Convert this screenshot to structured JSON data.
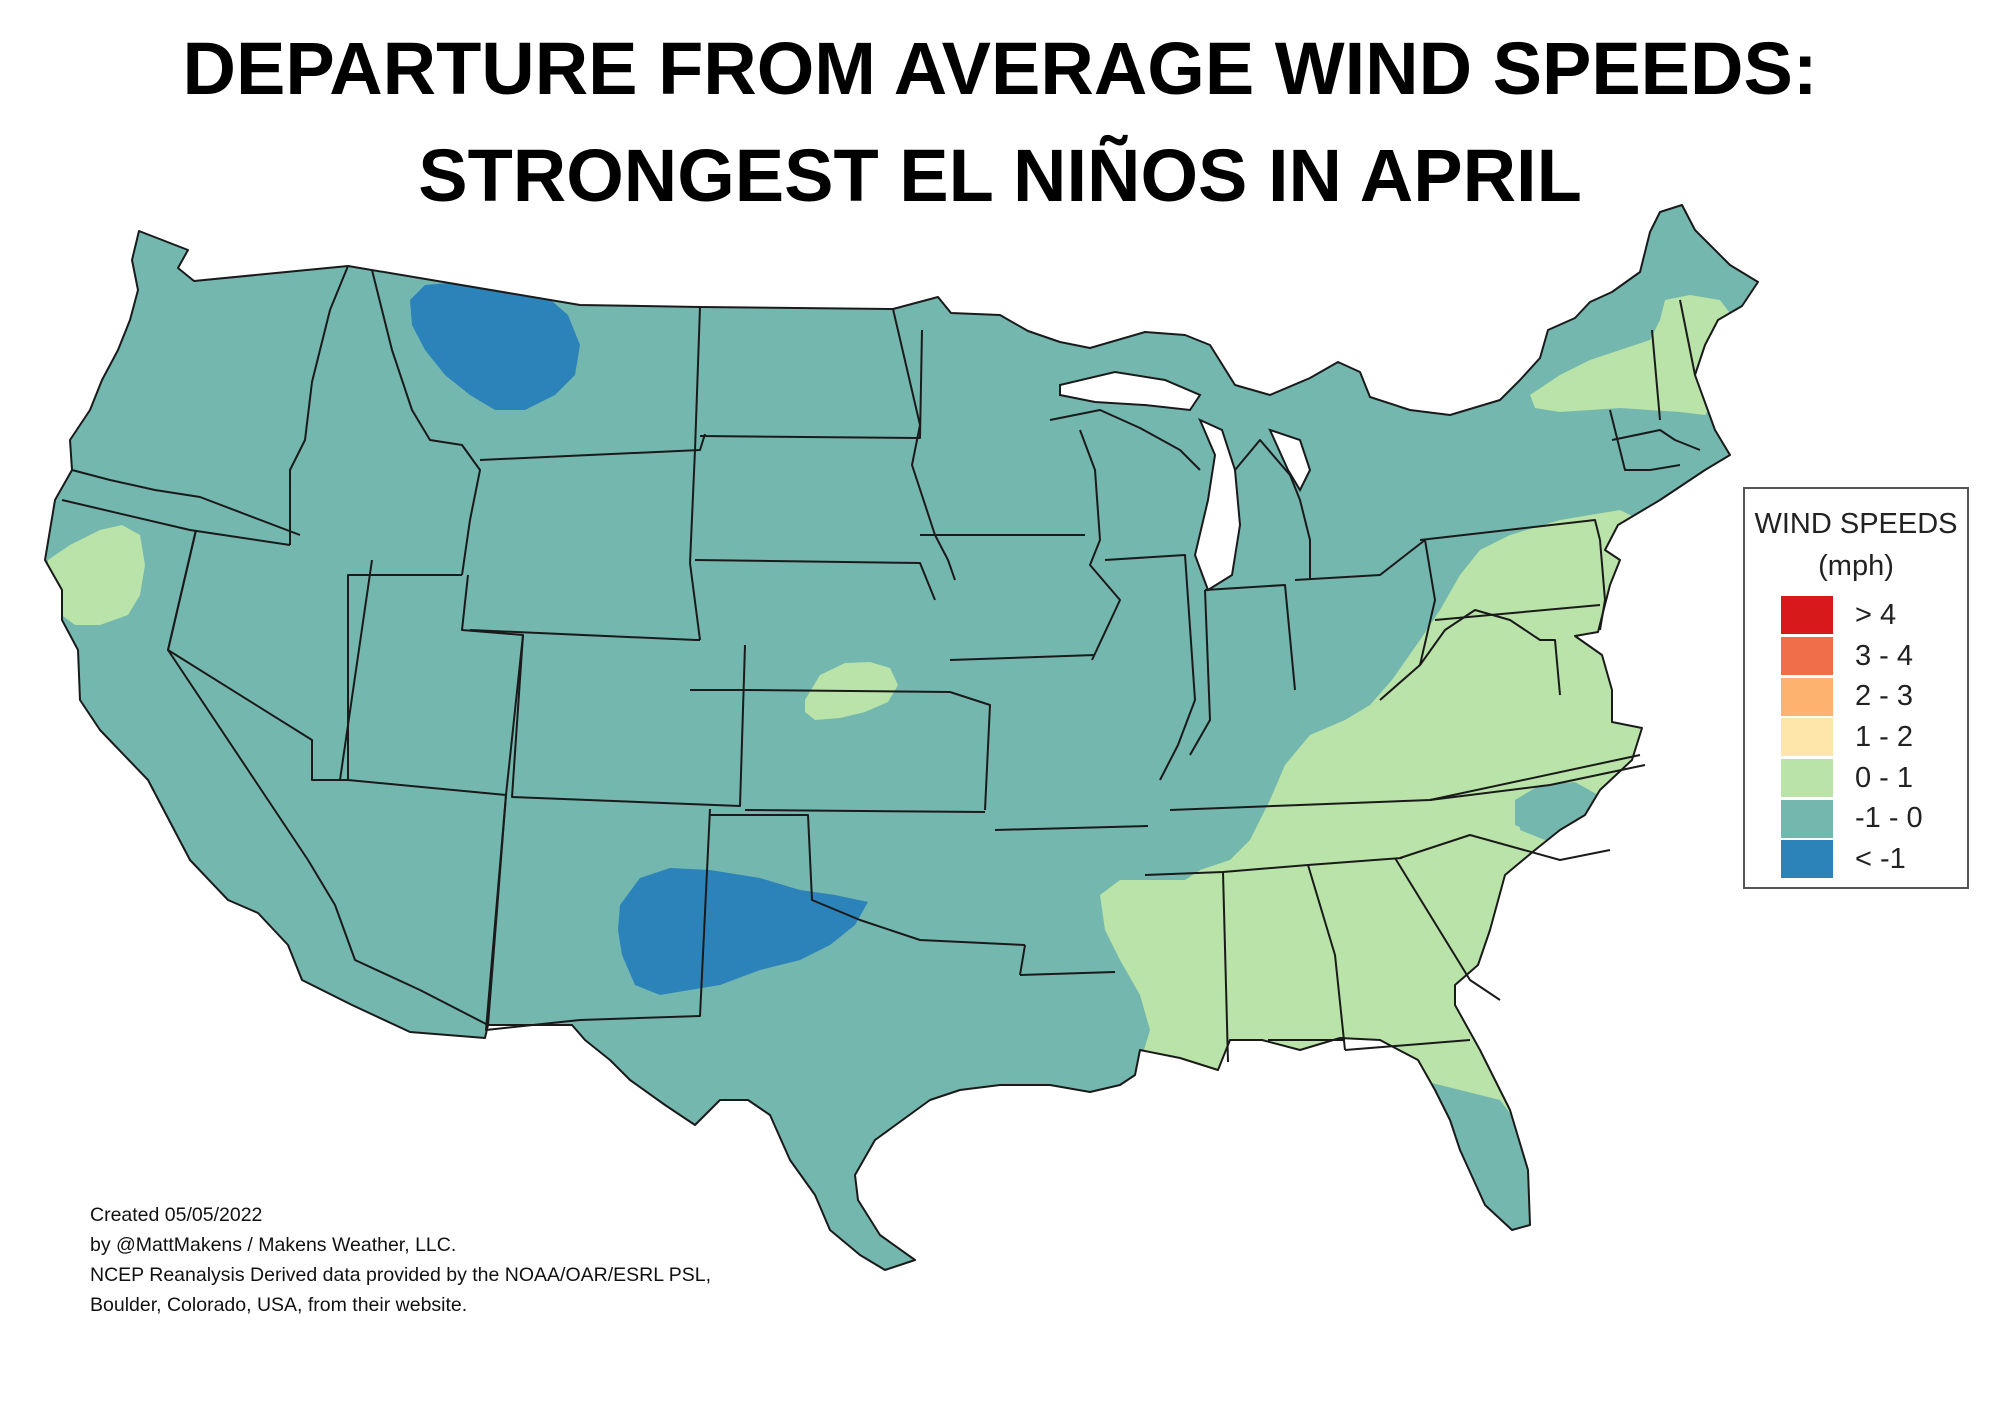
{
  "title": {
    "line1": "DEPARTURE FROM AVERAGE WIND SPEEDS:",
    "line2": "STRONGEST EL NIÑOS IN APRIL"
  },
  "legend": {
    "title_line1": "WIND SPEEDS",
    "title_line2": "(mph)",
    "items": [
      {
        "label": "> 4",
        "color": "#d7191c"
      },
      {
        "label": "3 - 4",
        "color": "#ef6f49"
      },
      {
        "label": "2 - 3",
        "color": "#fdb36f"
      },
      {
        "label": "1 - 2",
        "color": "#fee6aa"
      },
      {
        "label": "0 - 1",
        "color": "#b9e3a8"
      },
      {
        "label": "-1 - 0",
        "color": "#74b7ae"
      },
      {
        "label": "< -1",
        "color": "#2b83ba"
      }
    ]
  },
  "credits": [
    "Created 05/05/2022",
    "by @MattMakens / Makens Weather, LLC.",
    "NCEP Reanalysis Derived data provided by the NOAA/OAR/ESRL PSL,",
    "Boulder, Colorado, USA, from their website."
  ],
  "colors": {
    "base": "#74b7ae",
    "positive": "#b9e3a8",
    "negative": "#2b83ba",
    "border": "#1a1a1a"
  }
}
